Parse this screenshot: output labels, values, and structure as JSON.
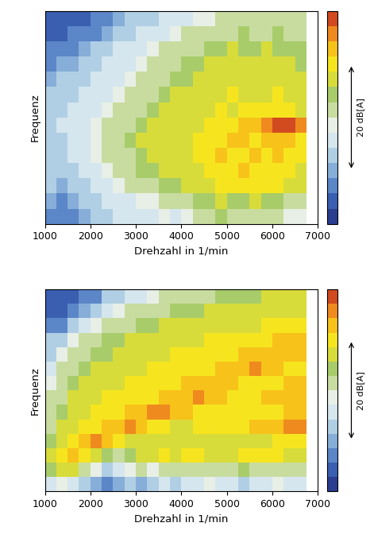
{
  "chart_data": [
    {
      "type": "heatmap",
      "xlabel": "Drehzahl in 1/min",
      "ylabel": "Frequenz",
      "xlim": [
        1000,
        7000
      ],
      "xticks": [
        1000,
        2000,
        3000,
        4000,
        5000,
        6000,
        7000
      ],
      "ylim": [
        0,
        14
      ],
      "yticks": [],
      "tick_labels": "x",
      "x_edges": [
        1000,
        1250,
        1500,
        1750,
        2000,
        2250,
        2500,
        2750,
        3000,
        3250,
        3500,
        3750,
        4000,
        4250,
        4500,
        4750,
        5000,
        5250,
        5500,
        5750,
        6000,
        6250,
        6500,
        6750
      ],
      "cells": [
        [
          8,
          6,
          8,
          10,
          12,
          14,
          16,
          16,
          17,
          16,
          18,
          16,
          18,
          20,
          22,
          24,
          22,
          20,
          22,
          22,
          20,
          18,
          18
        ],
        [
          10,
          8,
          10,
          12,
          14,
          15,
          16,
          17,
          18,
          18,
          20,
          20,
          22,
          24,
          24,
          26,
          24,
          24,
          26,
          24,
          24,
          22,
          22
        ],
        [
          12,
          10,
          12,
          14,
          15,
          16,
          18,
          20,
          22,
          22,
          24,
          24,
          26,
          28,
          28,
          30,
          30,
          30,
          30,
          30,
          30,
          28,
          28
        ],
        [
          14,
          12,
          14,
          15,
          16,
          18,
          20,
          22,
          24,
          24,
          26,
          26,
          28,
          28,
          30,
          30,
          30,
          32,
          30,
          30,
          30,
          30,
          28
        ],
        [
          12,
          14,
          15,
          16,
          18,
          20,
          22,
          22,
          24,
          26,
          28,
          28,
          28,
          30,
          30,
          32,
          30,
          30,
          32,
          30,
          32,
          30,
          30
        ],
        [
          14,
          14,
          16,
          16,
          18,
          20,
          22,
          24,
          26,
          26,
          26,
          28,
          28,
          30,
          30,
          30,
          32,
          32,
          30,
          32,
          32,
          32,
          30
        ],
        [
          14,
          15,
          16,
          16,
          18,
          20,
          22,
          22,
          24,
          26,
          28,
          26,
          28,
          28,
          30,
          30,
          30,
          32,
          34,
          36,
          38,
          38,
          36
        ],
        [
          12,
          14,
          15,
          16,
          16,
          18,
          20,
          22,
          22,
          24,
          26,
          26,
          28,
          28,
          28,
          30,
          28,
          30,
          30,
          30,
          30,
          30,
          28
        ],
        [
          12,
          12,
          14,
          15,
          16,
          16,
          18,
          20,
          22,
          22,
          24,
          26,
          26,
          28,
          28,
          28,
          30,
          28,
          28,
          28,
          30,
          28,
          28
        ],
        [
          10,
          12,
          12,
          14,
          15,
          16,
          16,
          18,
          20,
          22,
          22,
          24,
          24,
          26,
          28,
          28,
          28,
          28,
          28,
          28,
          28,
          26,
          26
        ],
        [
          8,
          10,
          10,
          12,
          14,
          15,
          16,
          16,
          18,
          20,
          22,
          22,
          24,
          24,
          26,
          26,
          26,
          28,
          26,
          26,
          26,
          26,
          24
        ],
        [
          6,
          6,
          8,
          10,
          12,
          14,
          15,
          16,
          16,
          18,
          20,
          20,
          22,
          22,
          24,
          24,
          26,
          24,
          24,
          26,
          24,
          24,
          24
        ],
        [
          4,
          4,
          6,
          6,
          8,
          10,
          12,
          14,
          15,
          16,
          16,
          18,
          20,
          20,
          22,
          22,
          22,
          24,
          22,
          22,
          24,
          22,
          22
        ],
        [
          3,
          3,
          4,
          4,
          6,
          8,
          10,
          12,
          14,
          14,
          15,
          16,
          16,
          18,
          18,
          20,
          20,
          20,
          20,
          20,
          20,
          20,
          20
        ]
      ],
      "colorbar": {
        "range": [
          0,
          40
        ],
        "ticks": [],
        "label": "20 dB[A]"
      }
    },
    {
      "type": "heatmap",
      "xlabel": "Drehzahl in 1/min",
      "ylabel": "Frequenz",
      "xlim": [
        1000,
        7000
      ],
      "xticks": [
        1000,
        2000,
        3000,
        4000,
        5000,
        6000,
        7000
      ],
      "ylim": [
        0,
        14
      ],
      "yticks": [],
      "tick_labels": "x",
      "x_edges": [
        1000,
        1250,
        1500,
        1750,
        2000,
        2250,
        2500,
        2750,
        3000,
        3250,
        3500,
        3750,
        4000,
        4250,
        4500,
        4750,
        5000,
        5250,
        5500,
        5750,
        6000,
        6250,
        6500,
        6750
      ],
      "cells": [
        [
          16,
          18,
          16,
          14,
          10,
          8,
          10,
          12,
          10,
          14,
          16,
          14,
          16,
          16,
          18,
          16,
          16,
          14,
          16,
          16,
          18,
          16,
          16
        ],
        [
          24,
          26,
          28,
          22,
          18,
          14,
          16,
          18,
          20,
          18,
          20,
          22,
          20,
          22,
          22,
          20,
          22,
          24,
          22,
          20,
          22,
          22,
          20
        ],
        [
          28,
          30,
          34,
          30,
          26,
          24,
          22,
          24,
          26,
          28,
          30,
          28,
          30,
          30,
          28,
          28,
          28,
          30,
          30,
          30,
          30,
          28,
          28
        ],
        [
          24,
          28,
          30,
          32,
          36,
          32,
          30,
          28,
          28,
          28,
          28,
          28,
          28,
          28,
          28,
          28,
          28,
          28,
          28,
          28,
          30,
          30,
          30
        ],
        [
          22,
          26,
          28,
          30,
          30,
          32,
          34,
          36,
          32,
          30,
          30,
          28,
          28,
          30,
          30,
          30,
          30,
          30,
          32,
          32,
          34,
          36,
          36
        ],
        [
          20,
          24,
          28,
          28,
          30,
          30,
          30,
          32,
          34,
          36,
          36,
          34,
          32,
          30,
          30,
          30,
          30,
          30,
          30,
          30,
          30,
          32,
          32
        ],
        [
          20,
          22,
          26,
          28,
          28,
          30,
          30,
          30,
          30,
          30,
          32,
          34,
          34,
          36,
          34,
          32,
          30,
          30,
          30,
          32,
          32,
          34,
          34
        ],
        [
          18,
          22,
          24,
          26,
          28,
          28,
          28,
          30,
          30,
          30,
          30,
          30,
          32,
          32,
          34,
          34,
          32,
          30,
          30,
          30,
          30,
          32,
          32
        ],
        [
          16,
          20,
          22,
          24,
          26,
          26,
          28,
          28,
          28,
          30,
          30,
          30,
          30,
          30,
          30,
          32,
          32,
          34,
          36,
          34,
          32,
          30,
          30
        ],
        [
          14,
          18,
          20,
          22,
          24,
          24,
          26,
          28,
          28,
          28,
          28,
          30,
          30,
          30,
          30,
          30,
          30,
          32,
          32,
          34,
          34,
          34,
          32
        ],
        [
          12,
          14,
          18,
          20,
          22,
          24,
          24,
          26,
          26,
          28,
          28,
          28,
          28,
          28,
          30,
          30,
          30,
          30,
          30,
          30,
          32,
          32,
          34
        ],
        [
          6,
          8,
          12,
          16,
          18,
          20,
          22,
          22,
          24,
          24,
          26,
          26,
          26,
          28,
          28,
          28,
          28,
          28,
          28,
          30,
          30,
          30,
          30
        ],
        [
          4,
          4,
          6,
          10,
          14,
          16,
          18,
          20,
          20,
          22,
          22,
          24,
          24,
          24,
          26,
          26,
          26,
          26,
          26,
          28,
          28,
          28,
          28
        ],
        [
          3,
          3,
          4,
          6,
          8,
          12,
          14,
          16,
          16,
          18,
          20,
          20,
          22,
          22,
          22,
          24,
          24,
          24,
          24,
          26,
          26,
          26,
          26
        ]
      ],
      "colorbar": {
        "range": [
          0,
          40
        ],
        "ticks": [],
        "label": "20 dB[A]"
      }
    }
  ]
}
